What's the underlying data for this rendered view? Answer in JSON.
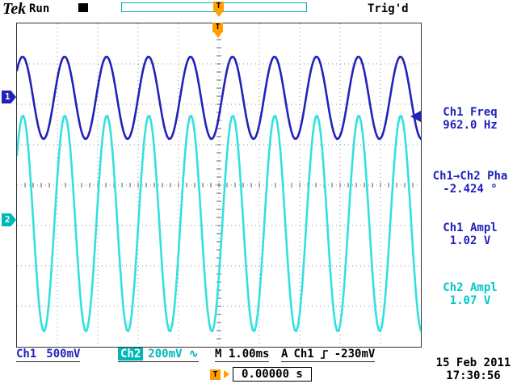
{
  "header": {
    "brand": "Tek",
    "acq_status": "Run",
    "trigger_status": "Trig'd",
    "trigger_marker": "T"
  },
  "graticule": {
    "ch1_marker": "1",
    "ch2_marker": "2",
    "top_trigger_marker": "T"
  },
  "measurements": [
    {
      "label": "Ch1 Freq",
      "value": "962.0 Hz"
    },
    {
      "label": "Ch1→Ch2 Pha",
      "value": "-2.424 °"
    },
    {
      "label": "Ch1 Ampl",
      "value": "1.02 V"
    },
    {
      "label": "Ch2 Ampl",
      "value": "1.07 V"
    }
  ],
  "readouts": {
    "ch1_label": "Ch1",
    "ch1_scale": "500mV",
    "ch2_label": "Ch2",
    "ch2_scale": "200mV",
    "ch2_coupling": "∿",
    "timebase": "M 1.00ms",
    "trig_prefix": "A",
    "trig_source": "Ch1",
    "trig_level": "-230mV",
    "date": "15 Feb 2011",
    "time": "17:30:56",
    "trig_pos_marker": "T",
    "trig_pos_value": "0.00000 s"
  },
  "colors": {
    "ch1": "#2222bb",
    "ch2": "#33e0e0",
    "accent_orange": "#ff9e00",
    "teal": "#00b0b0"
  },
  "chart_data": {
    "type": "line",
    "title": "Oscilloscope trace Ch1 / Ch2",
    "x_axis": {
      "s_per_div": 0.001,
      "divisions": 10,
      "label": "M 1.00ms"
    },
    "y_axis": {
      "divisions": 8
    },
    "trigger": {
      "source": "Ch1",
      "level_v": -0.23,
      "slope": "rising",
      "position_s": 0.0
    },
    "series": [
      {
        "name": "Ch1",
        "color": "#2222bb",
        "freq_hz": 962.0,
        "amplitude_vpp_v": 1.02,
        "volts_per_div": 0.5,
        "center_div_from_top": 1.84,
        "phase_deg": 0
      },
      {
        "name": "Ch2",
        "color": "#33e0e0",
        "freq_hz": 962.0,
        "amplitude_vpp_v": 1.07,
        "volts_per_div": 0.2,
        "center_div_from_top": 4.95,
        "phase_deg": -2.424
      }
    ]
  }
}
